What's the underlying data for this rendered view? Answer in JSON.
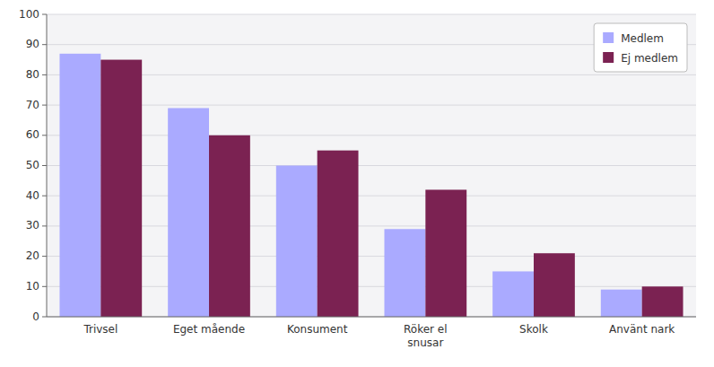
{
  "chart_data": {
    "type": "bar",
    "categories": [
      "Trivsel",
      "Eget mående",
      "Konsument",
      "Röker el\nsnusar",
      "Skolk",
      "Använt nark"
    ],
    "series": [
      {
        "name": "Medlem",
        "color": "#aaaaff",
        "values": [
          87,
          69,
          50,
          29,
          15,
          9
        ]
      },
      {
        "name": "Ej medlem",
        "color": "#7b2252",
        "values": [
          85,
          60,
          55,
          42,
          21,
          10
        ]
      }
    ],
    "ylim": [
      0,
      100
    ],
    "yticks": [
      0,
      10,
      20,
      30,
      40,
      50,
      60,
      70,
      80,
      90,
      100
    ],
    "grid": true,
    "legend": "upper right"
  }
}
